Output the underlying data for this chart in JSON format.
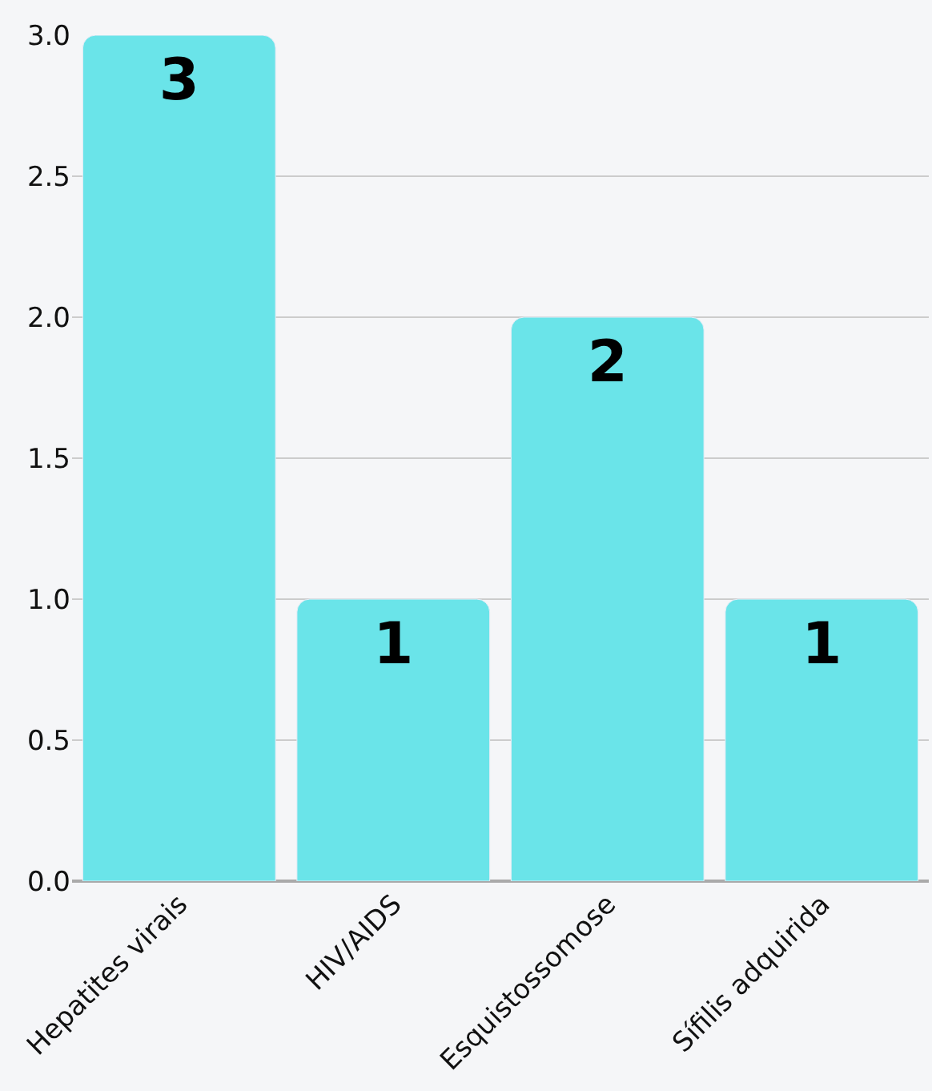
{
  "chart_data": {
    "type": "bar",
    "categories": [
      "Hepatites virais",
      "HIV/AIDS",
      "Esquistossomose",
      "Sífilis adquirida"
    ],
    "values": [
      3,
      1,
      2,
      1
    ],
    "color": "#6ae4e9",
    "ylim": [
      0,
      3
    ],
    "yticks": [
      {
        "value": 0,
        "label": "0.0"
      },
      {
        "value": 0.5,
        "label": "0.5"
      },
      {
        "value": 1,
        "label": "1.0"
      },
      {
        "value": 1.5,
        "label": "1.5"
      },
      {
        "value": 2,
        "label": "2.0"
      },
      {
        "value": 2.5,
        "label": "2.5"
      },
      {
        "value": 3,
        "label": "3.0"
      }
    ],
    "grid": "y",
    "data_labels": true,
    "legend": false
  }
}
